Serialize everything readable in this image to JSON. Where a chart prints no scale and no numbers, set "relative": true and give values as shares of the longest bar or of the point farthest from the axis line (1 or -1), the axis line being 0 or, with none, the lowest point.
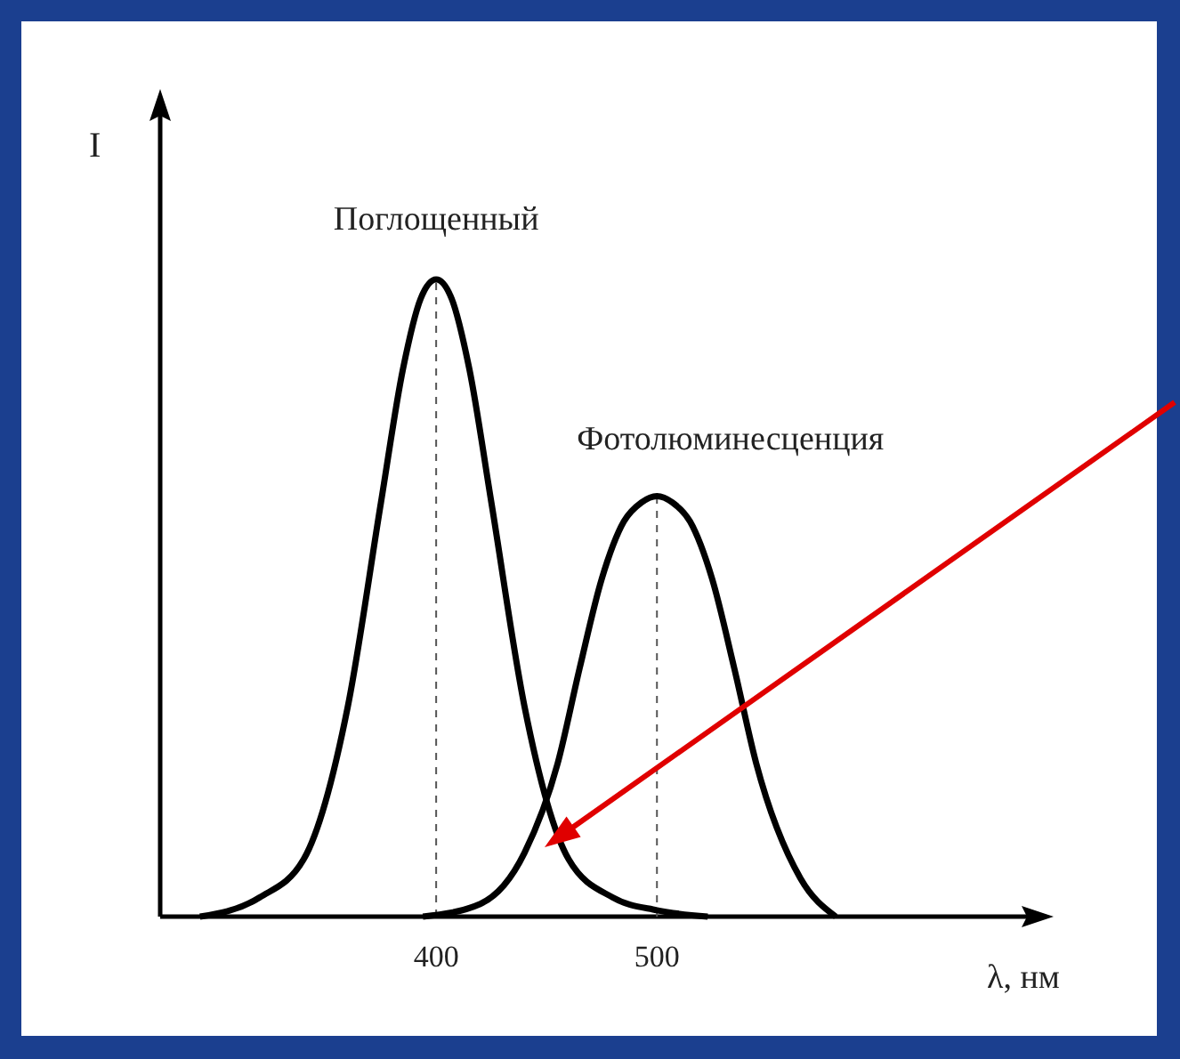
{
  "chart_data": {
    "type": "line",
    "relative": true,
    "ylabel": "I",
    "xlabel": "λ, нм",
    "xlim": [
      275,
      670
    ],
    "xticks": [
      400,
      500
    ],
    "line_style": "solid",
    "marker": "none",
    "series": [
      {
        "name": "Поглощенный",
        "color": "#000000",
        "x": [
          293,
          320,
          340,
          360,
          375,
          385,
          393,
          400,
          407,
          415,
          425,
          440,
          460,
          480,
          500,
          523
        ],
        "values": [
          0,
          0.03,
          0.09,
          0.33,
          0.65,
          0.86,
          0.97,
          1,
          0.97,
          0.86,
          0.65,
          0.33,
          0.09,
          0.03,
          0.01,
          0
        ]
      },
      {
        "name": "Фотолюминесценция",
        "color": "#000000",
        "x": [
          394,
          420,
          440,
          455,
          465,
          475,
          485,
          493,
          500,
          507,
          515,
          525,
          535,
          545,
          565,
          581
        ],
        "values": [
          0,
          0.02,
          0.1,
          0.24,
          0.39,
          0.53,
          0.62,
          0.65,
          0.66,
          0.65,
          0.62,
          0.53,
          0.39,
          0.24,
          0.06,
          0
        ]
      }
    ],
    "ref_lines": [
      {
        "axis": "x",
        "value": 400,
        "line_style": "dashed"
      },
      {
        "axis": "x",
        "value": 500,
        "line_style": "dashed"
      }
    ]
  }
}
